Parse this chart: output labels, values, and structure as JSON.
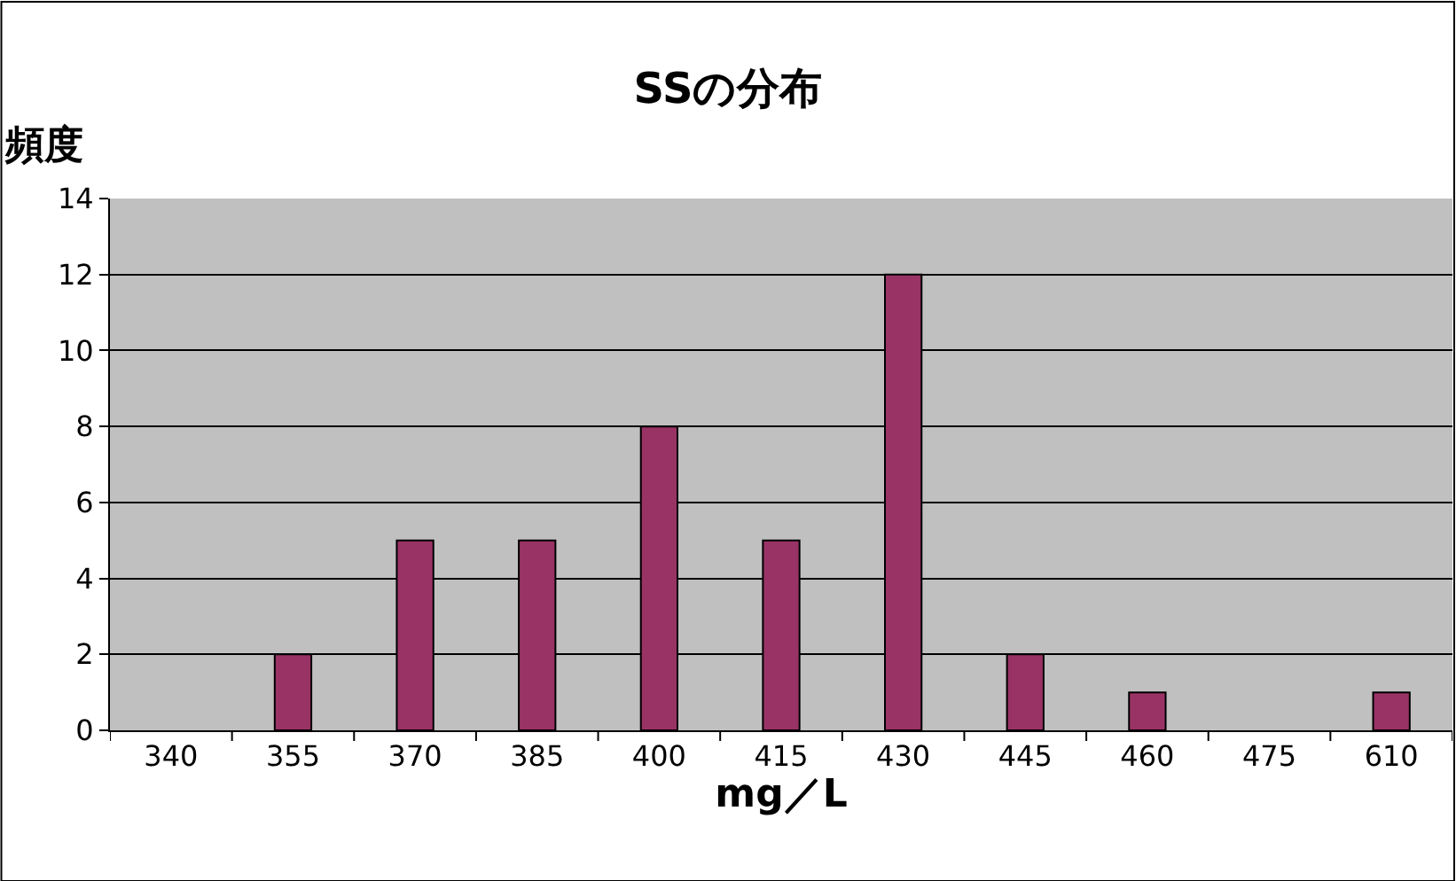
{
  "chart_data": {
    "type": "bar",
    "title": "SSの分布",
    "xlabel": "mg／L",
    "ylabel": "頻度",
    "categories": [
      "340",
      "355",
      "370",
      "385",
      "400",
      "415",
      "430",
      "445",
      "460",
      "475",
      "610"
    ],
    "values": [
      0,
      2,
      5,
      5,
      8,
      5,
      12,
      2,
      1,
      0,
      1
    ],
    "color": "#993366",
    "ylim": [
      0,
      14
    ],
    "yticks": [
      0,
      2,
      4,
      6,
      8,
      10,
      12,
      14
    ],
    "grid": "y",
    "legend": false
  }
}
